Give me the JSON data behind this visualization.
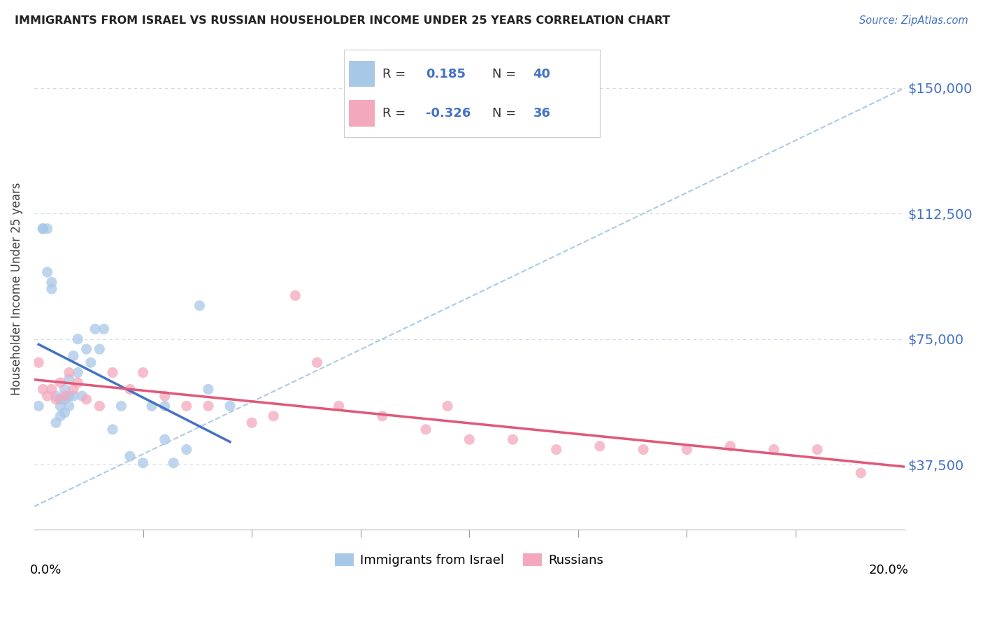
{
  "title": "IMMIGRANTS FROM ISRAEL VS RUSSIAN HOUSEHOLDER INCOME UNDER 25 YEARS CORRELATION CHART",
  "source": "Source: ZipAtlas.com",
  "ylabel": "Householder Income Under 25 years",
  "ytick_labels": [
    "$37,500",
    "$75,000",
    "$112,500",
    "$150,000"
  ],
  "ytick_values": [
    37500,
    75000,
    112500,
    150000
  ],
  "xlim": [
    0.0,
    0.2
  ],
  "ylim": [
    18000,
    162000
  ],
  "legend_label1": "Immigrants from Israel",
  "legend_label2": "Russians",
  "r1": "0.185",
  "n1": "40",
  "r2": "-0.326",
  "n2": "36",
  "color_blue": "#a8c8e8",
  "color_blue_line": "#4472c4",
  "color_blue_dash": "#8ab4d8",
  "color_pink": "#f4a8bc",
  "color_pink_line": "#e05878",
  "background_color": "#ffffff",
  "grid_color": "#d0d8e8",
  "israel_x": [
    0.001,
    0.002,
    0.002,
    0.003,
    0.003,
    0.004,
    0.004,
    0.005,
    0.005,
    0.006,
    0.006,
    0.006,
    0.007,
    0.007,
    0.007,
    0.008,
    0.008,
    0.008,
    0.009,
    0.009,
    0.01,
    0.01,
    0.011,
    0.012,
    0.013,
    0.014,
    0.015,
    0.016,
    0.018,
    0.02,
    0.022,
    0.025,
    0.027,
    0.03,
    0.03,
    0.032,
    0.035,
    0.038,
    0.04,
    0.045
  ],
  "israel_y": [
    55000,
    108000,
    108000,
    108000,
    95000,
    92000,
    90000,
    58000,
    50000,
    57000,
    55000,
    52000,
    60000,
    57000,
    53000,
    63000,
    58000,
    55000,
    70000,
    58000,
    75000,
    65000,
    58000,
    72000,
    68000,
    78000,
    72000,
    78000,
    48000,
    55000,
    40000,
    38000,
    55000,
    45000,
    55000,
    38000,
    42000,
    85000,
    60000,
    55000
  ],
  "russian_x": [
    0.001,
    0.002,
    0.003,
    0.004,
    0.005,
    0.006,
    0.007,
    0.008,
    0.009,
    0.01,
    0.012,
    0.015,
    0.018,
    0.022,
    0.025,
    0.03,
    0.035,
    0.04,
    0.05,
    0.055,
    0.06,
    0.065,
    0.07,
    0.08,
    0.09,
    0.095,
    0.1,
    0.11,
    0.12,
    0.13,
    0.14,
    0.15,
    0.16,
    0.17,
    0.18,
    0.19
  ],
  "russian_y": [
    68000,
    60000,
    58000,
    60000,
    57000,
    62000,
    58000,
    65000,
    60000,
    62000,
    57000,
    55000,
    65000,
    60000,
    65000,
    58000,
    55000,
    55000,
    50000,
    52000,
    88000,
    68000,
    55000,
    52000,
    48000,
    55000,
    45000,
    45000,
    42000,
    43000,
    42000,
    42000,
    43000,
    42000,
    42000,
    35000
  ],
  "xtick_positions": [
    0.025,
    0.05,
    0.075,
    0.1,
    0.125,
    0.15,
    0.175
  ],
  "dash_line_x": [
    0.0,
    0.2
  ],
  "dash_line_y": [
    25000,
    150000
  ]
}
